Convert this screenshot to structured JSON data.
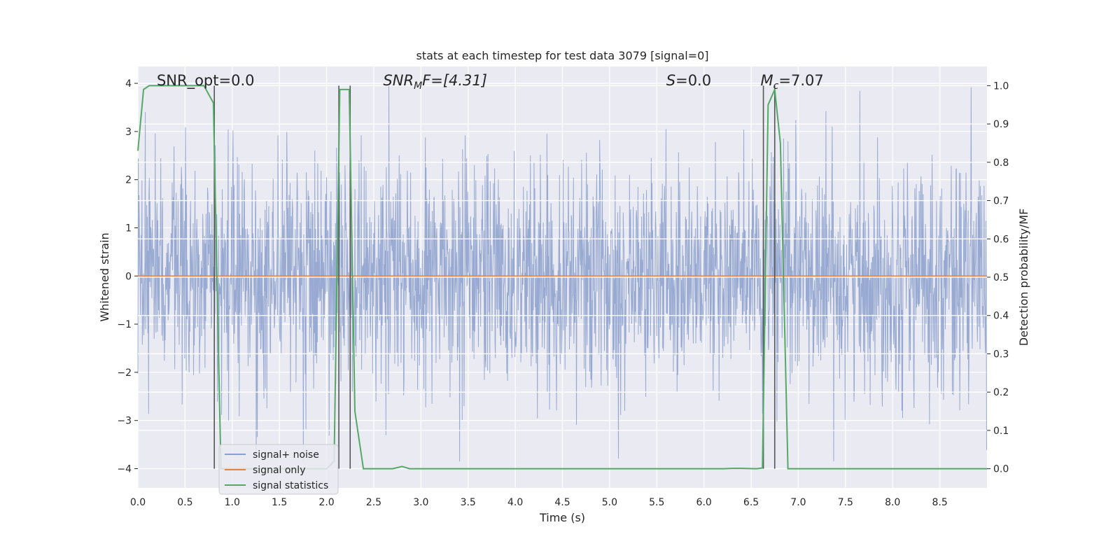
{
  "chart_data": {
    "type": "line",
    "title": "stats at each timestep for test data 3079 [signal=0]",
    "xlabel": "Time (s)",
    "ylabel": "Whitened strain",
    "y2label": "Detection probability/MF",
    "xlim": [
      0.0,
      9.0
    ],
    "ylim": [
      -4.4,
      4.35
    ],
    "y2lim": [
      -0.05,
      1.05
    ],
    "xticks": [
      0.0,
      0.5,
      1.0,
      1.5,
      2.0,
      2.5,
      3.0,
      3.5,
      4.0,
      4.5,
      5.0,
      5.5,
      6.0,
      6.5,
      7.0,
      7.5,
      8.0,
      8.5
    ],
    "xtick_labels": [
      "0.0",
      "0.5",
      "1.0",
      "1.5",
      "2.0",
      "2.5",
      "3.0",
      "3.5",
      "4.0",
      "4.5",
      "5.0",
      "5.5",
      "6.0",
      "6.5",
      "7.0",
      "7.5",
      "8.0",
      "8.5"
    ],
    "yticks": [
      -4,
      -3,
      -2,
      -1,
      0,
      1,
      2,
      3,
      4
    ],
    "ytick_labels": [
      "−4",
      "−3",
      "−2",
      "−1",
      "0",
      "1",
      "2",
      "3",
      "4"
    ],
    "y2ticks": [
      0.0,
      0.1,
      0.2,
      0.3,
      0.4,
      0.5,
      0.6,
      0.7,
      0.8,
      0.9,
      1.0
    ],
    "y2tick_labels": [
      "0.0",
      "0.1",
      "0.2",
      "0.3",
      "0.4",
      "0.5",
      "0.6",
      "0.7",
      "0.8",
      "0.9",
      "1.0"
    ],
    "grid": true,
    "legend_position": "lower-left",
    "annotations": [
      {
        "text": "SNR_opt=0.0",
        "x": 0.2
      },
      {
        "text": "SNR",
        "sub": "M",
        "tail": "F=[4.31]",
        "italic": true,
        "x": 2.6
      },
      {
        "text": "S",
        "tail": "=0.0",
        "italic": true,
        "x": 5.6
      },
      {
        "text": "M",
        "sub": "c",
        "tail": "=7.07",
        "italic": true,
        "x": 6.6
      }
    ],
    "series": [
      {
        "name": "signal+ noise",
        "axis": "left",
        "kind": "noise",
        "color": "#8a9fcc",
        "sample_rate_hz": 256,
        "envelope_std": 1.0,
        "peak_max": 3.95,
        "peak_min": -3.85
      },
      {
        "name": "signal only",
        "axis": "left",
        "color": "#dd8452",
        "x": [
          0.0,
          9.0
        ],
        "y": [
          0.0,
          0.0
        ]
      },
      {
        "name": "signal statistics",
        "axis": "right",
        "color": "#55a868",
        "x": [
          0.0,
          0.06,
          0.12,
          0.5,
          0.7,
          0.8,
          0.88,
          0.95,
          2.0,
          2.08,
          2.14,
          2.18,
          2.24,
          2.3,
          2.39,
          2.5,
          2.7,
          2.8,
          2.88,
          3.0,
          6.2,
          6.3,
          6.4,
          6.56,
          6.62,
          6.68,
          6.75,
          6.81,
          6.89,
          7.0,
          9.0
        ],
        "y": [
          0.83,
          0.99,
          1.0,
          1.0,
          1.0,
          0.955,
          0.0,
          0.0,
          0.0,
          0.02,
          0.99,
          0.99,
          0.99,
          0.15,
          0.0,
          0.0,
          0.0,
          0.006,
          0.0,
          0.0,
          0.0,
          0.001,
          0.001,
          0.0,
          0.002,
          0.95,
          0.99,
          0.85,
          0.0,
          0.0,
          0.0
        ]
      }
    ],
    "markers": [
      0.81,
      2.13,
      2.25,
      6.63,
      6.75
    ]
  }
}
